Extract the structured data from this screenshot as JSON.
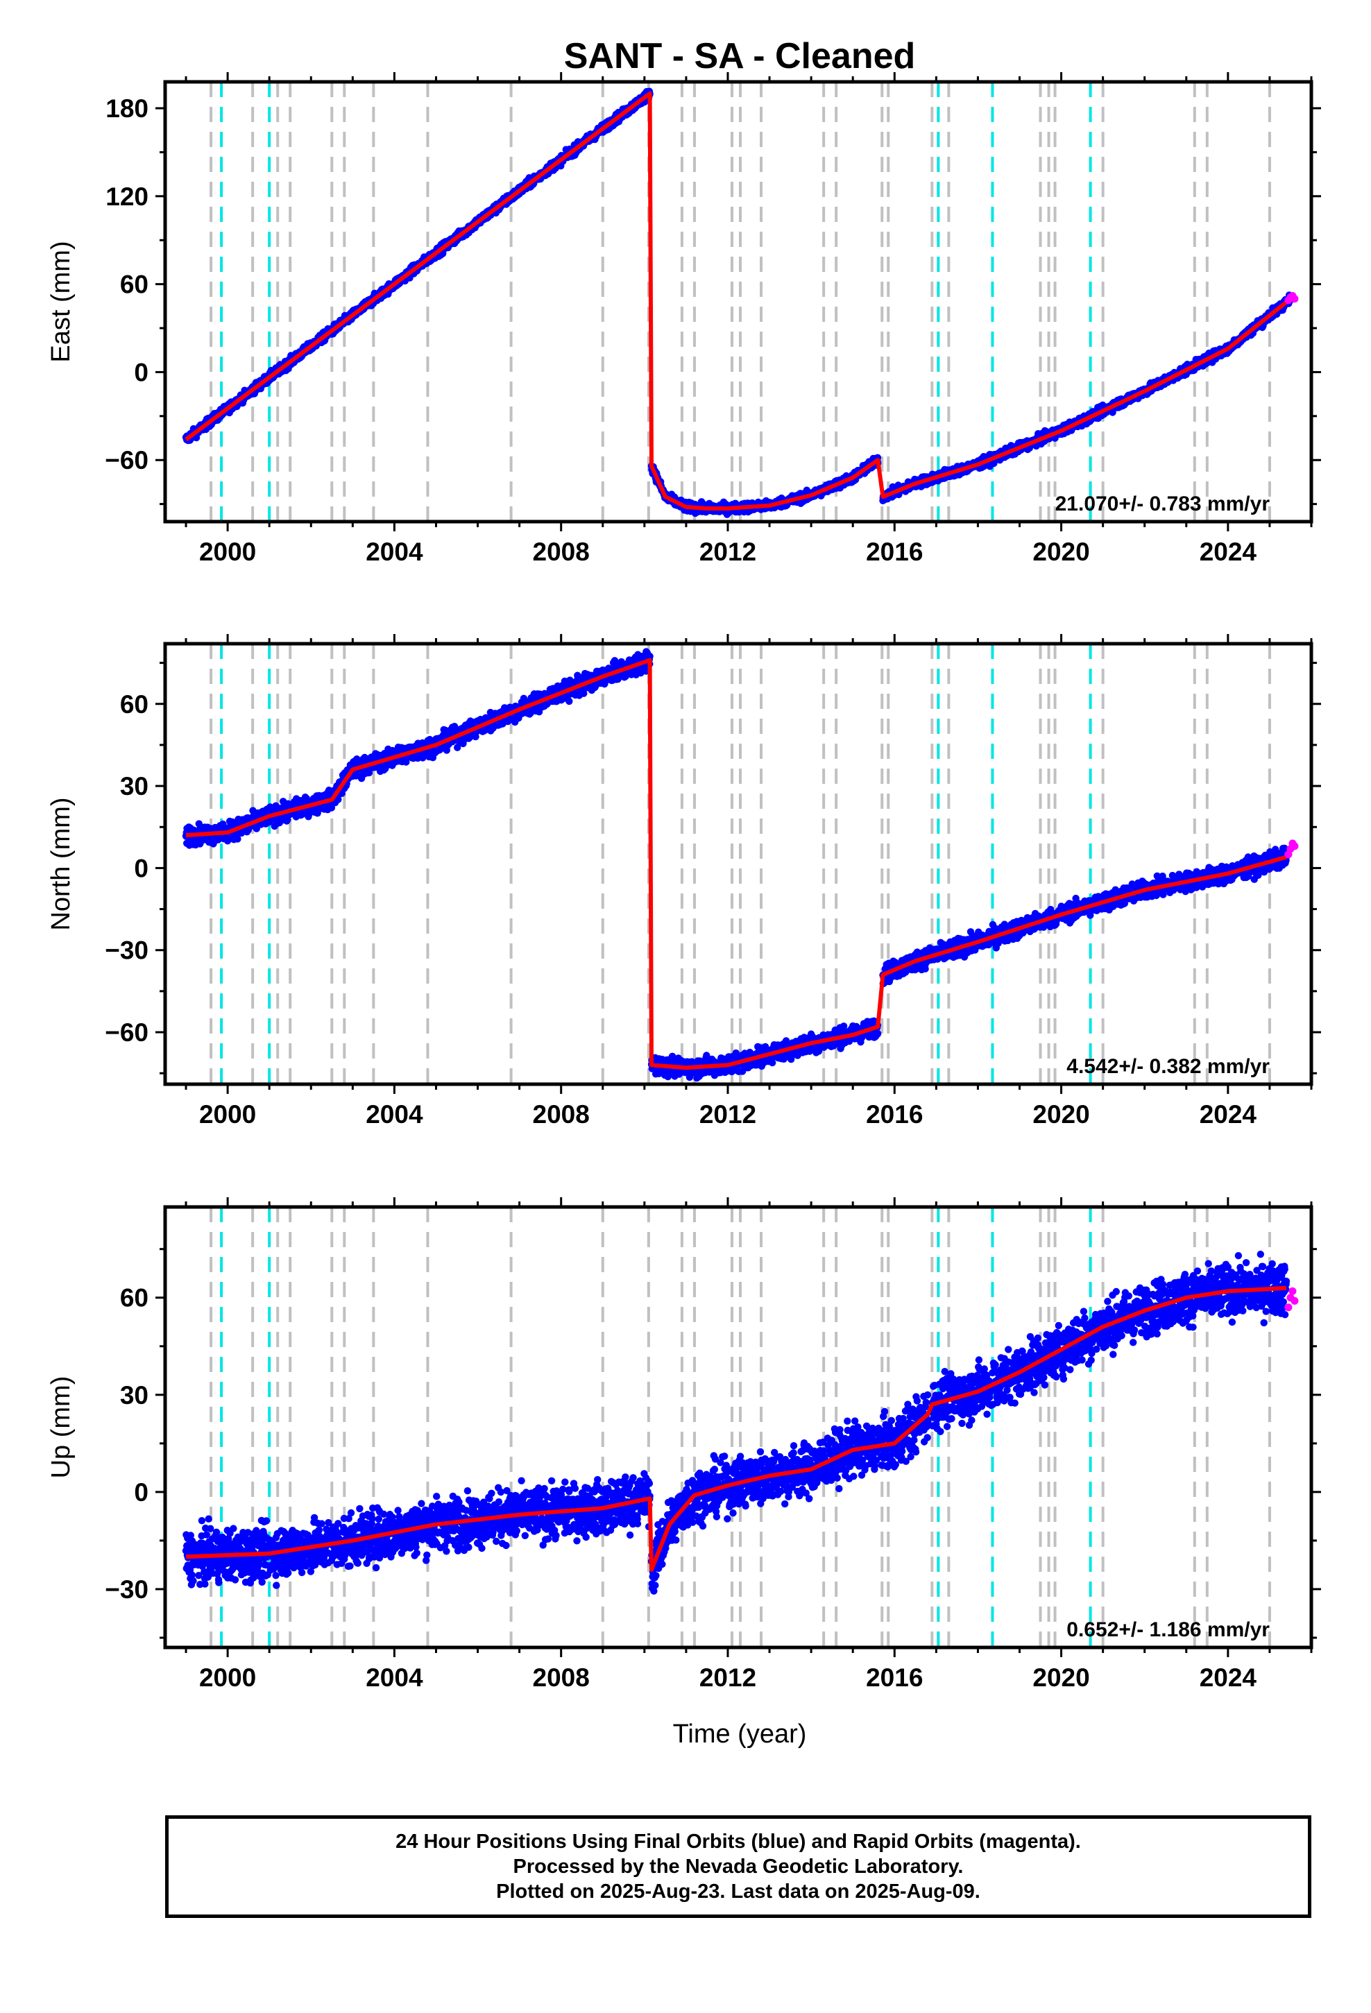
{
  "title": "SANT  - SA - Cleaned",
  "x_axis_label": "Time (year)",
  "caption": [
    "24 Hour Positions Using Final Orbits (blue) and Rapid Orbits (magenta).",
    "Processed by the Nevada Geodetic Laboratory.",
    "Plotted on 2025-Aug-23. Last data on 2025-Aug-09."
  ],
  "colors": {
    "final_orbits": "#0000ff",
    "rapid_orbits": "#ff00ff",
    "model": "#ff0000",
    "equipment_change_lines": "#c0c0c0",
    "earthquake_lines": "#00e5e5"
  },
  "chart_data": [
    {
      "type": "scatter",
      "component": "East",
      "ylabel": "East (mm)",
      "xlim": [
        1998.5,
        2026.0
      ],
      "ylim": [
        -102,
        198
      ],
      "yticks": [
        -60,
        0,
        60,
        120,
        180
      ],
      "xticks": [
        2000,
        2004,
        2008,
        2012,
        2016,
        2020,
        2024
      ],
      "rate": "21.070+/- 0.783 mm/yr",
      "grid": false,
      "series": [
        {
          "role": "final",
          "segments": [
            {
              "x": [
                1999.0,
                2010.13
              ],
              "y": [
                -46,
                190
              ]
            },
            {
              "x": [
                2010.17,
                2010.5,
                2011.0,
                2011.5,
                2012.0,
                2013.0,
                2014.0,
                2015.0,
                2015.6
              ],
              "y": [
                -64,
                -85,
                -92,
                -93,
                -93,
                -91,
                -84,
                -72,
                -60
              ]
            },
            {
              "x": [
                2015.72,
                2016.5,
                2018.0,
                2020.0,
                2022.0,
                2024.0,
                2025.5
              ],
              "y": [
                -85,
                -76,
                -63,
                -40,
                -13,
                16,
                50
              ]
            }
          ]
        },
        {
          "role": "model",
          "segments": [
            {
              "x": [
                1999.0,
                2010.13
              ],
              "y": [
                -46,
                190
              ]
            },
            {
              "x": [
                2010.17,
                2010.5,
                2011.0,
                2011.5,
                2012.0,
                2013.0,
                2014.0,
                2015.0,
                2015.6
              ],
              "y": [
                -64,
                -85,
                -92,
                -93,
                -93,
                -91,
                -84,
                -72,
                -60
              ]
            },
            {
              "x": [
                2015.72,
                2016.5,
                2018.0,
                2020.0,
                2022.0,
                2024.0,
                2025.5
              ],
              "y": [
                -85,
                -76,
                -63,
                -40,
                -13,
                16,
                50
              ]
            }
          ]
        },
        {
          "role": "rapid",
          "x": [
            2025.45,
            2025.5,
            2025.55,
            2025.6
          ],
          "y": [
            49,
            51,
            52,
            50
          ]
        }
      ]
    },
    {
      "type": "scatter",
      "component": "North",
      "ylabel": "North (mm)",
      "xlim": [
        1998.5,
        2026.0
      ],
      "ylim": [
        -79,
        82
      ],
      "yticks": [
        -60,
        -30,
        0,
        30,
        60
      ],
      "xticks": [
        2000,
        2004,
        2008,
        2012,
        2016,
        2020,
        2024
      ],
      "rate": "4.542+/- 0.382 mm/yr",
      "grid": false,
      "series": [
        {
          "role": "final",
          "segments": [
            {
              "x": [
                1999.0,
                2000.0,
                2001.0,
                2002.5,
                2003.0,
                2005.0,
                2007.0,
                2009.0,
                2010.13
              ],
              "y": [
                12,
                13,
                19,
                25,
                36,
                45,
                58,
                70,
                76
              ]
            },
            {
              "x": [
                2010.17,
                2011.0,
                2012.0,
                2013.0,
                2014.0,
                2015.0,
                2015.6
              ],
              "y": [
                -72,
                -73,
                -72,
                -68,
                -64,
                -61,
                -58
              ]
            },
            {
              "x": [
                2015.72,
                2016.5,
                2018.0,
                2020.0,
                2022.0,
                2024.0,
                2025.4
              ],
              "y": [
                -39,
                -34,
                -27,
                -17,
                -8,
                -2,
                4
              ]
            }
          ]
        },
        {
          "role": "model",
          "segments": [
            {
              "x": [
                1999.0,
                2000.0,
                2001.0,
                2002.5,
                2003.0,
                2005.0,
                2007.0,
                2009.0,
                2010.13
              ],
              "y": [
                12,
                13,
                19,
                25,
                36,
                45,
                58,
                70,
                76
              ]
            },
            {
              "x": [
                2010.17,
                2011.0,
                2012.0,
                2013.0,
                2014.0,
                2015.0,
                2015.6
              ],
              "y": [
                -72,
                -73,
                -72,
                -68,
                -64,
                -61,
                -58
              ]
            },
            {
              "x": [
                2015.72,
                2016.5,
                2018.0,
                2020.0,
                2022.0,
                2024.0,
                2025.4
              ],
              "y": [
                -39,
                -34,
                -27,
                -17,
                -8,
                -2,
                4
              ]
            }
          ]
        },
        {
          "role": "rapid",
          "x": [
            2025.45,
            2025.5,
            2025.55,
            2025.6
          ],
          "y": [
            5,
            7,
            9,
            8
          ]
        }
      ]
    },
    {
      "type": "scatter",
      "component": "Up",
      "ylabel": "Up (mm)",
      "xlim": [
        1998.5,
        2026.0
      ],
      "ylim": [
        -48,
        88
      ],
      "yticks": [
        -30,
        0,
        30,
        60
      ],
      "xticks": [
        2000,
        2004,
        2008,
        2012,
        2016,
        2020,
        2024
      ],
      "rate": "0.652+/- 1.186 mm/yr",
      "grid": false,
      "series": [
        {
          "role": "final",
          "segments": [
            {
              "x": [
                1999.0,
                2001.0,
                2003.0,
                2005.0,
                2007.0,
                2009.0,
                2010.13
              ],
              "y": [
                -20,
                -19,
                -15,
                -10,
                -7,
                -5,
                -2
              ]
            },
            {
              "x": [
                2010.17,
                2010.6,
                2011.2,
                2012.0,
                2013.0,
                2014.0,
                2015.0,
                2016.0,
                2016.8
              ],
              "y": [
                -24,
                -10,
                -1,
                2,
                5,
                7,
                13,
                15,
                24
              ]
            },
            {
              "x": [
                2016.9,
                2018.0,
                2019.0,
                2020.0,
                2021.0,
                2022.0,
                2023.0,
                2024.0,
                2025.4
              ],
              "y": [
                27,
                31,
                37,
                44,
                51,
                56,
                60,
                62,
                63
              ]
            }
          ]
        },
        {
          "role": "model",
          "segments": [
            {
              "x": [
                1999.0,
                2001.0,
                2003.0,
                2005.0,
                2007.0,
                2009.0,
                2010.13
              ],
              "y": [
                -20,
                -19,
                -15,
                -10,
                -7,
                -5,
                -2
              ]
            },
            {
              "x": [
                2010.17,
                2010.6,
                2011.2,
                2012.0,
                2013.0,
                2014.0,
                2015.0,
                2016.0,
                2016.8
              ],
              "y": [
                -24,
                -10,
                -1,
                2,
                5,
                7,
                13,
                15,
                24
              ]
            },
            {
              "x": [
                2016.9,
                2018.0,
                2019.0,
                2020.0,
                2021.0,
                2022.0,
                2023.0,
                2024.0,
                2025.4
              ],
              "y": [
                27,
                31,
                37,
                44,
                51,
                56,
                60,
                62,
                63
              ]
            }
          ]
        },
        {
          "role": "rapid",
          "x": [
            2025.45,
            2025.5,
            2025.55,
            2025.6
          ],
          "y": [
            57,
            60,
            62,
            59
          ]
        }
      ]
    }
  ],
  "equipment_change_years": [
    1999.6,
    2000.6,
    2001.2,
    2001.5,
    2002.5,
    2002.8,
    2003.5,
    2004.8,
    2006.8,
    2009.0,
    2010.1,
    2010.9,
    2011.2,
    2012.1,
    2012.3,
    2012.8,
    2014.3,
    2014.6,
    2015.7,
    2015.85,
    2016.9,
    2017.3,
    2019.5,
    2019.7,
    2019.85,
    2021.0,
    2023.2,
    2023.5,
    2025.0
  ],
  "earthquake_years": [
    1999.85,
    2001.0,
    2017.05,
    2018.35,
    2020.7
  ]
}
